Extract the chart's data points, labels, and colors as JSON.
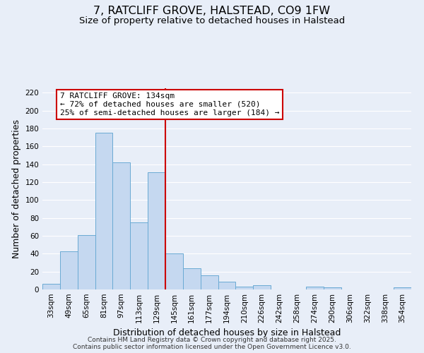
{
  "title": "7, RATCLIFF GROVE, HALSTEAD, CO9 1FW",
  "subtitle": "Size of property relative to detached houses in Halstead",
  "xlabel": "Distribution of detached houses by size in Halstead",
  "ylabel": "Number of detached properties",
  "bar_labels": [
    "33sqm",
    "49sqm",
    "65sqm",
    "81sqm",
    "97sqm",
    "113sqm",
    "129sqm",
    "145sqm",
    "161sqm",
    "177sqm",
    "194sqm",
    "210sqm",
    "226sqm",
    "242sqm",
    "258sqm",
    "274sqm",
    "290sqm",
    "306sqm",
    "322sqm",
    "338sqm",
    "354sqm"
  ],
  "bar_values": [
    6,
    43,
    61,
    175,
    142,
    75,
    131,
    40,
    24,
    16,
    9,
    3,
    5,
    0,
    0,
    3,
    2,
    0,
    0,
    0,
    2
  ],
  "bar_color": "#c5d8f0",
  "bar_edge_color": "#6aaad4",
  "vline_color": "#cc0000",
  "vline_x_index": 6.5,
  "ylim": [
    0,
    225
  ],
  "yticks": [
    0,
    20,
    40,
    60,
    80,
    100,
    120,
    140,
    160,
    180,
    200,
    220
  ],
  "annotation_title": "7 RATCLIFF GROVE: 134sqm",
  "annotation_line1": "← 72% of detached houses are smaller (520)",
  "annotation_line2": "25% of semi-detached houses are larger (184) →",
  "annotation_box_facecolor": "#ffffff",
  "annotation_box_edgecolor": "#cc0000",
  "footer1": "Contains HM Land Registry data © Crown copyright and database right 2025.",
  "footer2": "Contains public sector information licensed under the Open Government Licence v3.0.",
  "background_color": "#e8eef8",
  "grid_color": "#ffffff",
  "title_fontsize": 11.5,
  "subtitle_fontsize": 9.5,
  "axis_label_fontsize": 9,
  "tick_fontsize": 7.5,
  "annotation_fontsize": 8,
  "footer_fontsize": 6.5
}
